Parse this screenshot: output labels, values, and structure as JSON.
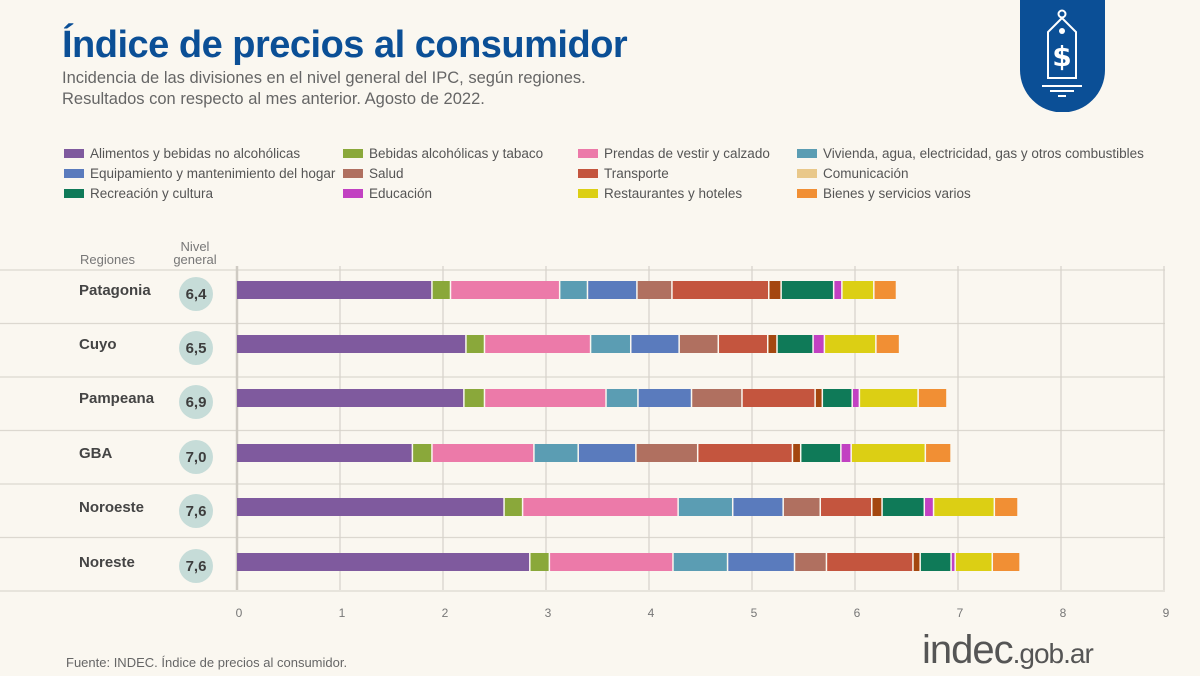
{
  "header": {
    "title": "Índice de precios al consumidor",
    "subtitle_1": "Incidencia de las divisiones en el nivel general del IPC, según regiones.",
    "subtitle_2": "Resultados con respecto al mes anterior. Agosto de 2022.",
    "logo_icon": "price-tag-dollar-icon",
    "logo_color": "#0b4f96"
  },
  "chart_data": {
    "type": "bar",
    "orientation": "horizontal",
    "stacked": true,
    "title": "",
    "xlabel": "",
    "ylabel": "",
    "xlim": [
      0,
      9
    ],
    "x_ticks": [
      "0",
      "1",
      "2",
      "3",
      "4",
      "5",
      "6",
      "7",
      "8",
      "9"
    ],
    "grid": true,
    "legend_position": "top",
    "row_header": "Regiones",
    "total_header": "Nivel general",
    "categories": [
      "Patagonia",
      "Cuyo",
      "Pampeana",
      "GBA",
      "Noroeste",
      "Noreste"
    ],
    "totals": [
      "6,4",
      "6,5",
      "6,9",
      "7,0",
      "7,6",
      "7,6"
    ],
    "series": [
      {
        "name": "Alimentos y bebidas no alcohólicas",
        "color": "#7f5a9e",
        "values": [
          1.9,
          2.23,
          2.21,
          1.71,
          2.6,
          2.85
        ]
      },
      {
        "name": "Bebidas alcohólicas y tabaco",
        "color": "#8aa83a",
        "values": [
          0.18,
          0.18,
          0.2,
          0.19,
          0.18,
          0.19
        ]
      },
      {
        "name": "Prendas de vestir y calzado",
        "color": "#ec7aa9",
        "values": [
          1.06,
          1.03,
          1.18,
          0.99,
          1.51,
          1.2
        ]
      },
      {
        "name": "Vivienda, agua, electricidad, gas y otros combustibles",
        "color": "#5b9db3",
        "values": [
          0.27,
          0.39,
          0.31,
          0.43,
          0.53,
          0.53
        ]
      },
      {
        "name": "Equipamiento y mantenimiento del hogar",
        "color": "#5a7bbd",
        "values": [
          0.48,
          0.47,
          0.52,
          0.56,
          0.49,
          0.65
        ]
      },
      {
        "name": "Salud",
        "color": "#b07060",
        "values": [
          0.34,
          0.38,
          0.49,
          0.6,
          0.36,
          0.31
        ]
      },
      {
        "name": "Transporte",
        "color": "#c4553e",
        "values": [
          0.94,
          0.48,
          0.71,
          0.92,
          0.5,
          0.84
        ]
      },
      {
        "name": "Comunicación",
        "color": "#e9c88a",
        "bar_color": "#a4470f",
        "values": [
          0.12,
          0.09,
          0.07,
          0.08,
          0.1,
          0.07
        ]
      },
      {
        "name": "Recreación y cultura",
        "color": "#0f7a58",
        "values": [
          0.51,
          0.35,
          0.29,
          0.39,
          0.41,
          0.3
        ]
      },
      {
        "name": "Educación",
        "color": "#c241c2",
        "values": [
          0.08,
          0.11,
          0.07,
          0.1,
          0.09,
          0.04
        ]
      },
      {
        "name": "Restaurantes y hoteles",
        "color": "#dccf14",
        "values": [
          0.31,
          0.5,
          0.57,
          0.72,
          0.59,
          0.36
        ]
      },
      {
        "name": "Bienes y servicios varios",
        "color": "#f18f34",
        "values": [
          0.22,
          0.23,
          0.28,
          0.25,
          0.23,
          0.27
        ]
      }
    ]
  },
  "footer": {
    "source": "Fuente: INDEC. Índice de precios al consumidor.",
    "brand": "indec",
    "brand_suffix": ".gob.ar"
  }
}
